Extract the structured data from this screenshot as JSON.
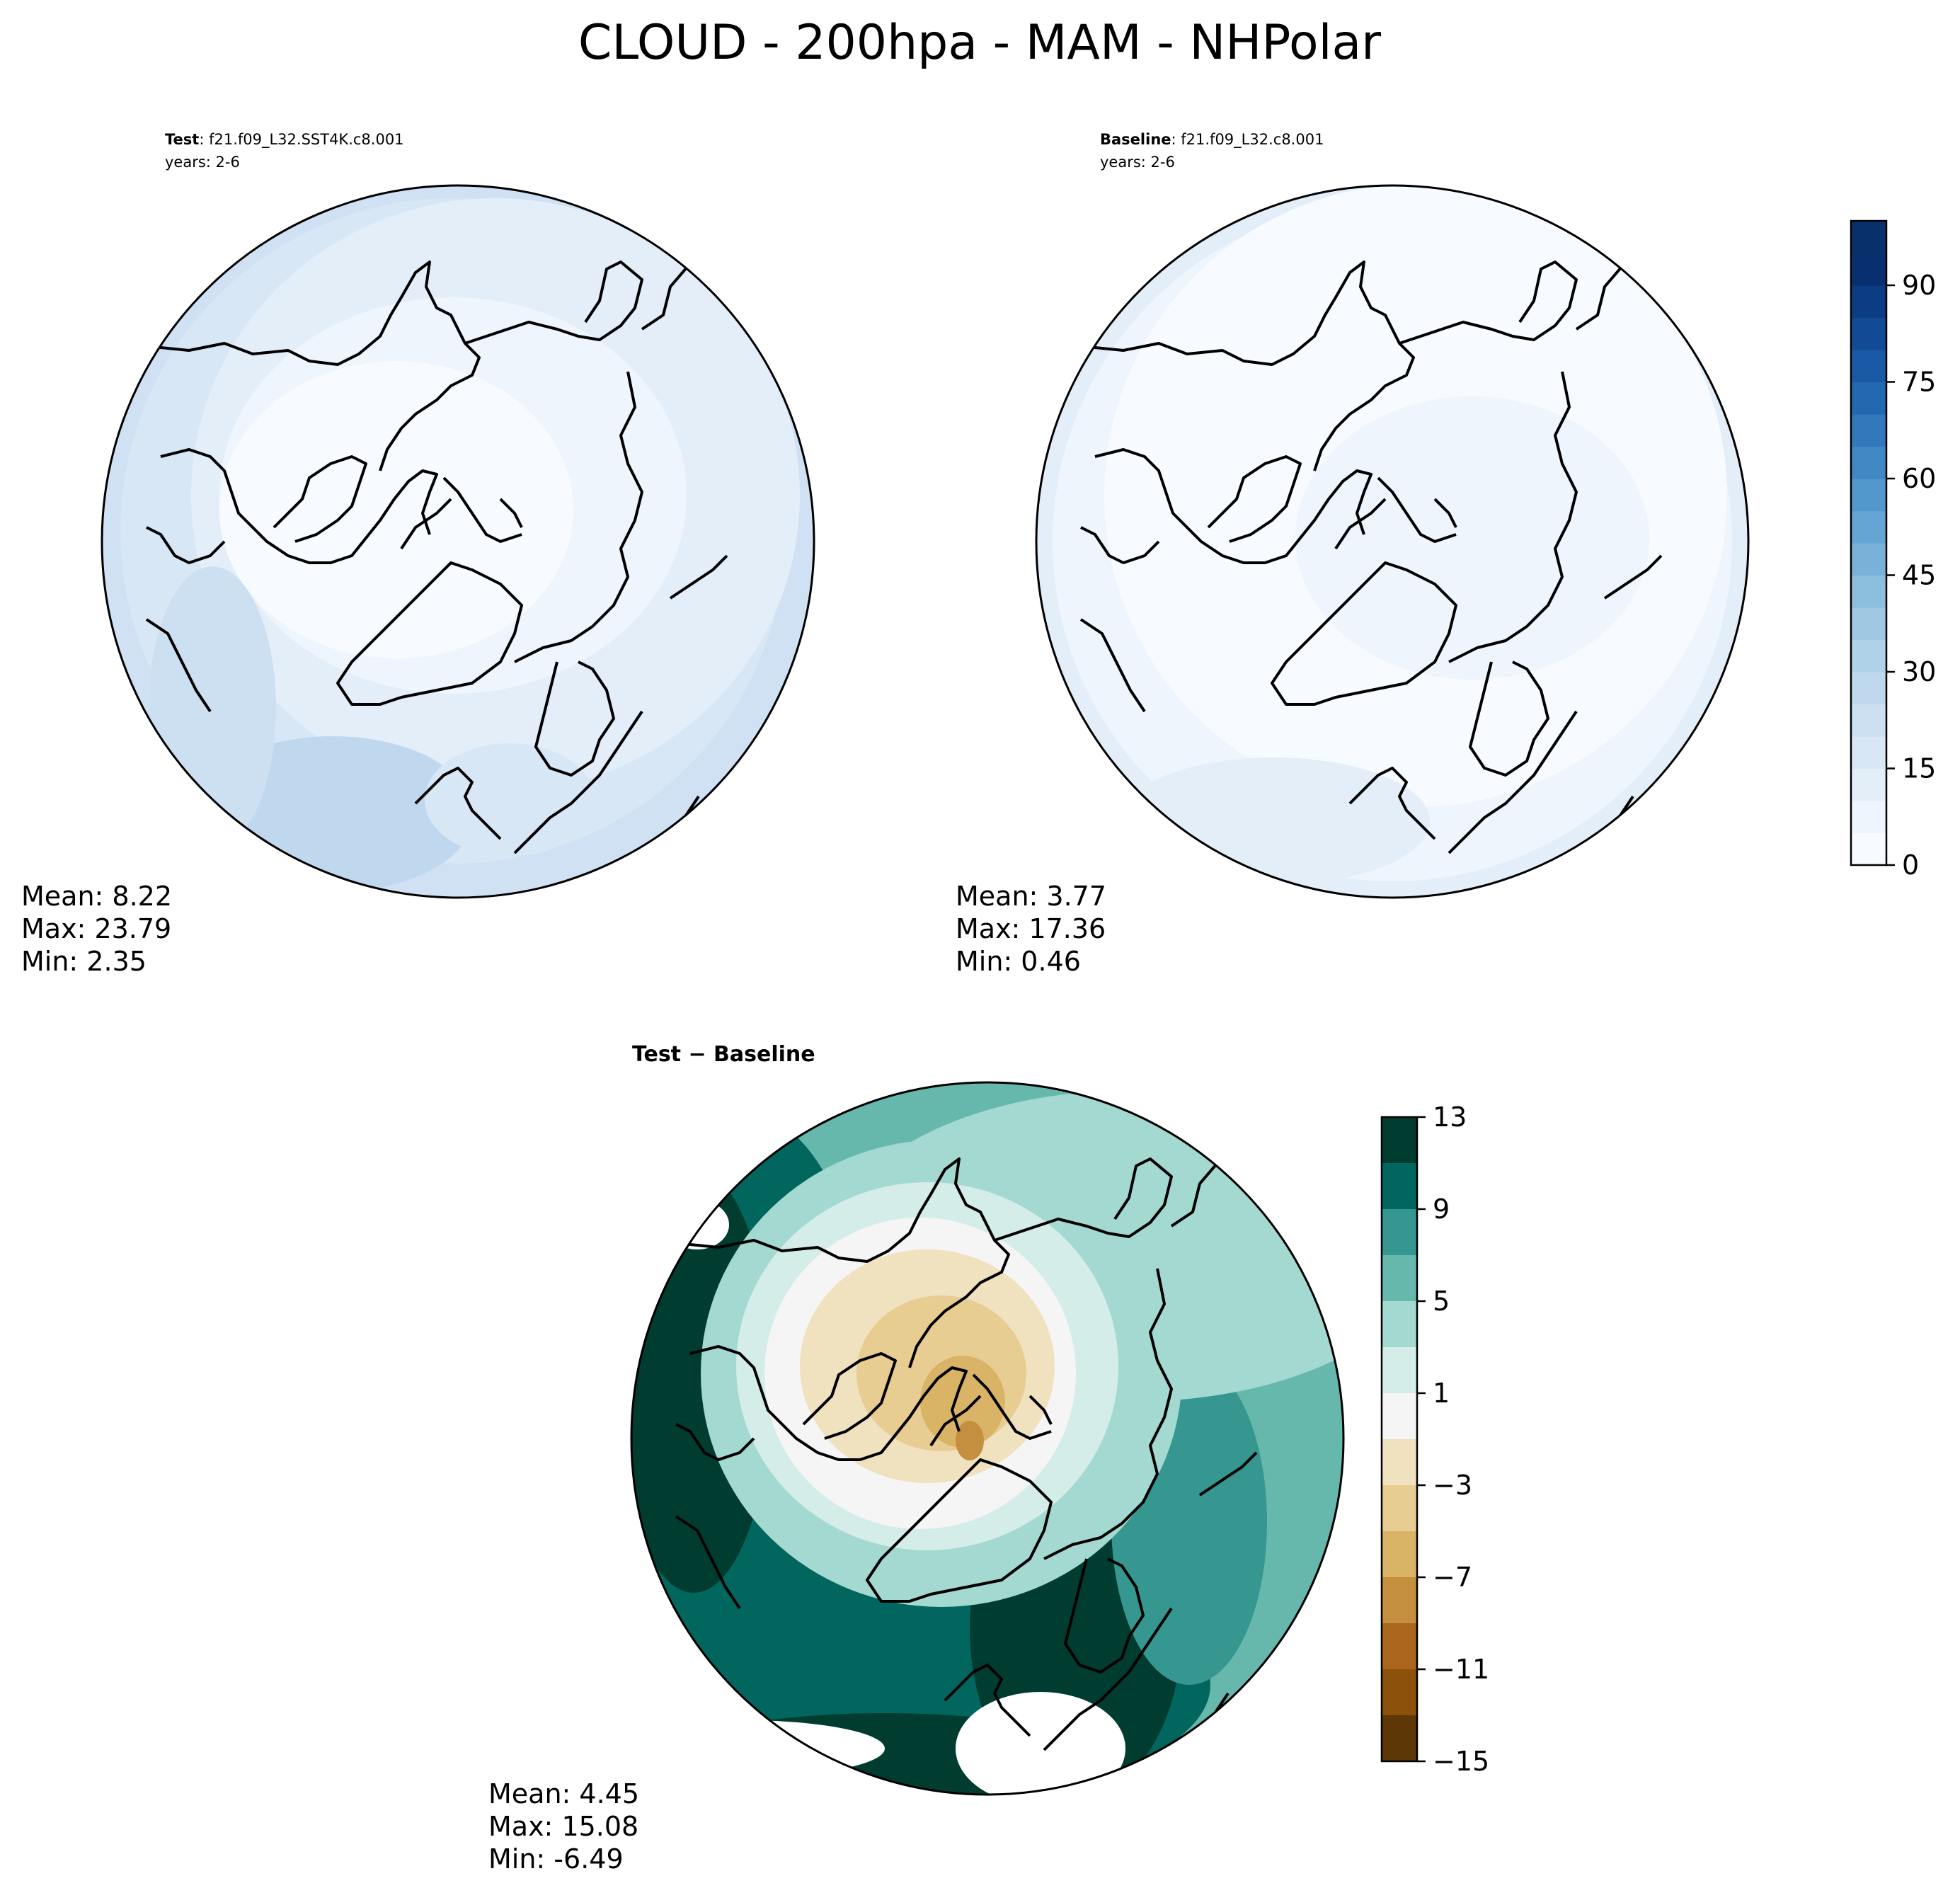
{
  "figure_title": "CLOUD - 200hpa - MAM - NHPolar",
  "chart_data": [
    {
      "type": "heatmap",
      "projection": "north-polar-stereographic",
      "panel": "test",
      "label_bold": "Test",
      "label_rest": ": f21.f09_L32.SST4K.c8.001",
      "years": "years: 2-6",
      "stats": {
        "mean": "Mean:  8.22",
        "max": "Max: 23.79",
        "min": "Min:  2.35"
      },
      "mean": 8.22,
      "max": 23.79,
      "min": 2.35,
      "colormap": "Blues"
    },
    {
      "type": "heatmap",
      "projection": "north-polar-stereographic",
      "panel": "baseline",
      "label_bold": "Baseline",
      "label_rest": ": f21.f09_L32.c8.001",
      "years": "years: 2-6",
      "stats": {
        "mean": "Mean:  3.77",
        "max": "Max: 17.36",
        "min": "Min:  0.46"
      },
      "mean": 3.77,
      "max": 17.36,
      "min": 0.46,
      "colormap": "Blues",
      "colorbar": {
        "range": [
          0,
          100
        ],
        "ticks": [
          0,
          15,
          30,
          45,
          60,
          75,
          90
        ],
        "tick_labels": [
          "0",
          "15",
          "30",
          "45",
          "60",
          "75",
          "90"
        ],
        "levels": 20
      }
    },
    {
      "type": "heatmap",
      "projection": "north-polar-stereographic",
      "panel": "difference",
      "title": "Test − Baseline",
      "stats": {
        "mean": "Mean:  4.45",
        "max": "Max: 15.08",
        "min": "Min: -6.49"
      },
      "mean": 4.45,
      "max": 15.08,
      "min": -6.49,
      "colormap": "BrBG",
      "colorbar": {
        "range": [
          -15,
          13
        ],
        "ticks": [
          13,
          9,
          5,
          1,
          -3,
          -7,
          -11,
          -15
        ],
        "tick_labels": [
          "13",
          "9",
          "5",
          "1",
          "−3",
          "−7",
          "−11",
          "−15"
        ],
        "colors": [
          "#003c30",
          "#01665e",
          "#35978f",
          "#66b8ad",
          "#a3d9d0",
          "#d4ede9",
          "#f5f5f5",
          "#f0e1bf",
          "#e7cd92",
          "#d9b467",
          "#c48f3e",
          "#a9661c",
          "#8c510a",
          "#5e3707"
        ]
      }
    }
  ],
  "colors": {
    "blues_ramp": [
      "#f7fbff",
      "#eef5fc",
      "#e3eef9",
      "#d8e7f5",
      "#cde0f1",
      "#c0d8ed",
      "#b0d2e8",
      "#9fc9e2",
      "#8cbfdd",
      "#78b2d8",
      "#64a5d3",
      "#5298cc",
      "#4089c4",
      "#3179bb",
      "#2369b2",
      "#1a59a5",
      "#124a96",
      "#0c3d84",
      "#083070",
      "#08306b"
    ],
    "coast": "#000000",
    "frame": "#000000"
  }
}
